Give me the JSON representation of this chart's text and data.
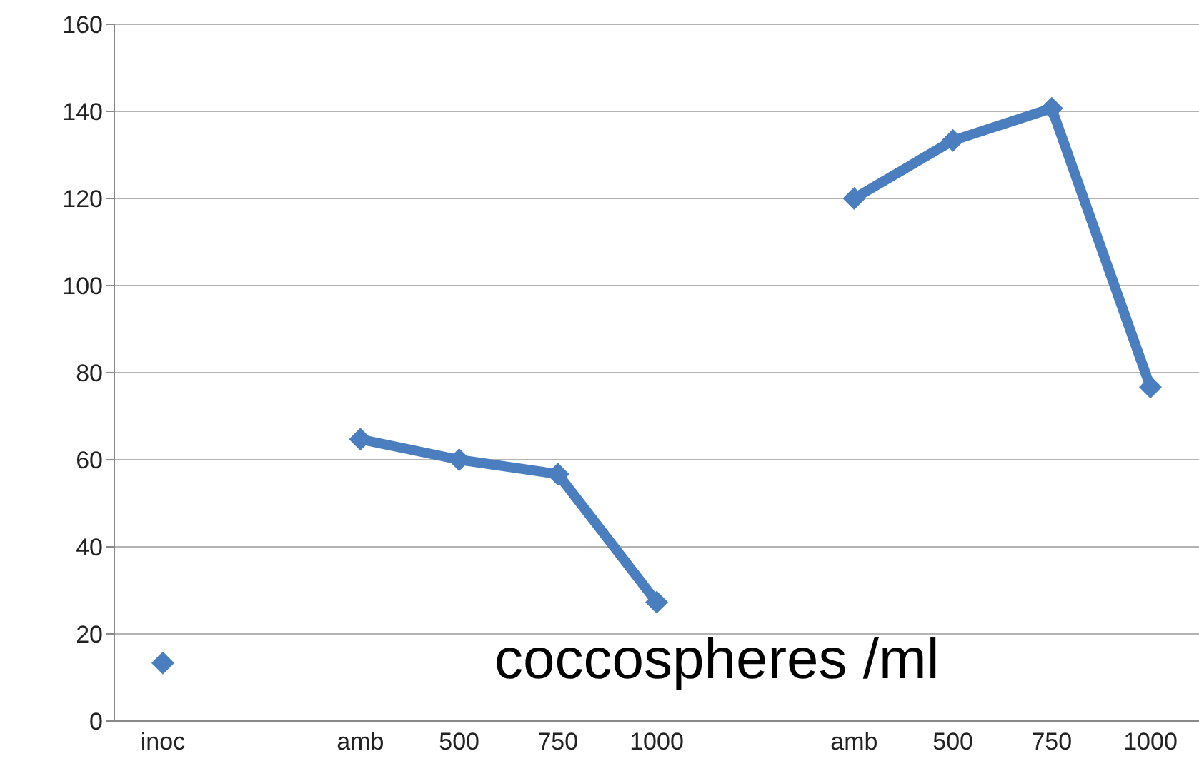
{
  "chart_data": {
    "type": "line",
    "categories": [
      "inoc",
      null,
      "amb",
      "500",
      "750",
      "1000",
      null,
      "amb",
      "500",
      "750",
      "1000"
    ],
    "series": [
      {
        "color": "#4a7ebf",
        "values": [
          13.3,
          null,
          64.7,
          60,
          56.7,
          27.3,
          null,
          120,
          133.3,
          140.7,
          76.7
        ]
      }
    ],
    "ylim": [
      0,
      160
    ],
    "yticks": [
      0,
      20,
      40,
      60,
      80,
      100,
      120,
      140,
      160
    ],
    "grid": "y",
    "marker": "diamond",
    "line_style": "solid",
    "legend": false,
    "annotations": [
      "coccospheres /ml"
    ]
  }
}
